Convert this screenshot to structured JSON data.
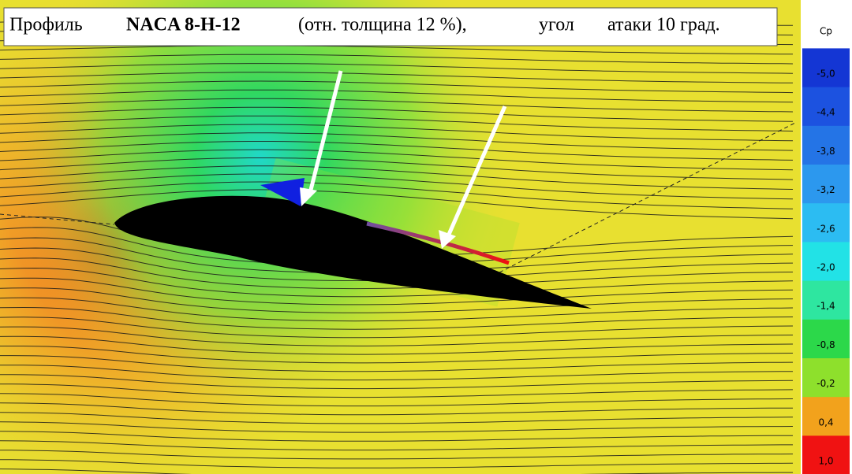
{
  "title": {
    "parts": [
      "Профиль",
      "NACA 8-H-12",
      "(отн. толщина 12 %),",
      "угол",
      "атаки 10 град."
    ]
  },
  "colorbar": {
    "title": "Cp",
    "levels": [
      {
        "value": -5.0,
        "label": "-5,0",
        "color": "#1436d4"
      },
      {
        "value": -4.4,
        "label": "-4,4",
        "color": "#1c52e0"
      },
      {
        "value": -3.8,
        "label": "-3,8",
        "color": "#2474e6"
      },
      {
        "value": -3.2,
        "label": "-3,2",
        "color": "#2c98ee"
      },
      {
        "value": -2.6,
        "label": "-2,6",
        "color": "#2cbcf2"
      },
      {
        "value": -2.0,
        "label": "-2,0",
        "color": "#22e2e6"
      },
      {
        "value": -1.4,
        "label": "-1,4",
        "color": "#2ee6a0"
      },
      {
        "value": -0.8,
        "label": "-0,8",
        "color": "#2cd84a"
      },
      {
        "value": -0.2,
        "label": "-0,2",
        "color": "#8ee02c"
      },
      {
        "value": 0.4,
        "label": "0,4",
        "color": "#f2a21c"
      },
      {
        "value": 1.0,
        "label": "1,0",
        "color": "#f01212"
      }
    ]
  }
}
